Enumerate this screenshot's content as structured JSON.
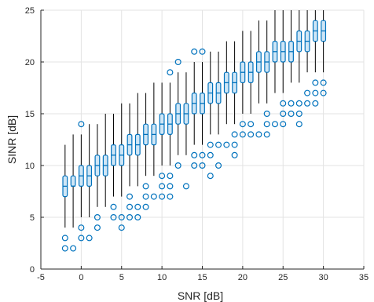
{
  "chart_data": {
    "type": "box",
    "xlabel": "SNR [dB]",
    "ylabel": "SINR [dB]",
    "xlim": [
      -5,
      35
    ],
    "ylim": [
      0,
      25
    ],
    "xticks": [
      -5,
      0,
      5,
      10,
      15,
      20,
      25,
      30,
      35
    ],
    "yticks": [
      0,
      5,
      10,
      15,
      20,
      25
    ],
    "grid": true,
    "colors": {
      "box": "#0072BD",
      "box_fill": "#CFE6F6",
      "median": "#0072BD",
      "whisker": "#000000",
      "outlier": "#0072BD",
      "grid": "#E3E3E3"
    },
    "boxes": [
      {
        "x": -2,
        "whisker_low": 4,
        "q1": 7,
        "median": 8,
        "q3": 9,
        "whisker_high": 12,
        "outliers": [
          2,
          3
        ]
      },
      {
        "x": -1,
        "whisker_low": 4,
        "q1": 8,
        "median": 8,
        "q3": 9,
        "whisker_high": 13,
        "outliers": [
          2
        ]
      },
      {
        "x": 0,
        "whisker_low": 5,
        "q1": 8,
        "median": 9,
        "q3": 10,
        "whisker_high": 13,
        "outliers": [
          3,
          4,
          14
        ]
      },
      {
        "x": 1,
        "whisker_low": 5,
        "q1": 8,
        "median": 9,
        "q3": 10,
        "whisker_high": 14,
        "outliers": [
          3
        ]
      },
      {
        "x": 2,
        "whisker_low": 6,
        "q1": 9,
        "median": 10,
        "q3": 11,
        "whisker_high": 14,
        "outliers": [
          4,
          5
        ]
      },
      {
        "x": 3,
        "whisker_low": 6,
        "q1": 9,
        "median": 10,
        "q3": 11,
        "whisker_high": 15,
        "outliers": []
      },
      {
        "x": 4,
        "whisker_low": 7,
        "q1": 10,
        "median": 11,
        "q3": 12,
        "whisker_high": 15,
        "outliers": [
          5,
          6
        ]
      },
      {
        "x": 5,
        "whisker_low": 7,
        "q1": 10,
        "median": 11,
        "q3": 12,
        "whisker_high": 16,
        "outliers": [
          4,
          5
        ]
      },
      {
        "x": 6,
        "whisker_low": 8,
        "q1": 11,
        "median": 12,
        "q3": 13,
        "whisker_high": 16,
        "outliers": [
          5,
          6,
          7
        ]
      },
      {
        "x": 7,
        "whisker_low": 8,
        "q1": 11,
        "median": 12,
        "q3": 13,
        "whisker_high": 17,
        "outliers": [
          5,
          6
        ]
      },
      {
        "x": 8,
        "whisker_low": 9,
        "q1": 12,
        "median": 13,
        "q3": 14,
        "whisker_high": 17,
        "outliers": [
          6,
          7,
          8
        ]
      },
      {
        "x": 9,
        "whisker_low": 9,
        "q1": 12,
        "median": 13,
        "q3": 14,
        "whisker_high": 18,
        "outliers": [
          7
        ]
      },
      {
        "x": 10,
        "whisker_low": 10,
        "q1": 13,
        "median": 14,
        "q3": 15,
        "whisker_high": 18,
        "outliers": [
          7,
          8,
          9
        ]
      },
      {
        "x": 11,
        "whisker_low": 10,
        "q1": 13,
        "median": 14,
        "q3": 15,
        "whisker_high": 18,
        "outliers": [
          7,
          8,
          9,
          19
        ]
      },
      {
        "x": 12,
        "whisker_low": 11,
        "q1": 14,
        "median": 15,
        "q3": 16,
        "whisker_high": 19,
        "outliers": [
          10,
          20
        ]
      },
      {
        "x": 13,
        "whisker_low": 11,
        "q1": 14,
        "median": 15,
        "q3": 16,
        "whisker_high": 19,
        "outliers": [
          8
        ]
      },
      {
        "x": 14,
        "whisker_low": 12,
        "q1": 15,
        "median": 16,
        "q3": 17,
        "whisker_high": 20,
        "outliers": [
          10,
          11,
          21
        ]
      },
      {
        "x": 15,
        "whisker_low": 12,
        "q1": 15,
        "median": 16,
        "q3": 17,
        "whisker_high": 20,
        "outliers": [
          10,
          11,
          21
        ]
      },
      {
        "x": 16,
        "whisker_low": 13,
        "q1": 16,
        "median": 17,
        "q3": 18,
        "whisker_high": 21,
        "outliers": [
          9,
          11,
          12
        ]
      },
      {
        "x": 17,
        "whisker_low": 13,
        "q1": 16,
        "median": 17,
        "q3": 18,
        "whisker_high": 21,
        "outliers": [
          10,
          12
        ]
      },
      {
        "x": 18,
        "whisker_low": 14,
        "q1": 17,
        "median": 18,
        "q3": 19,
        "whisker_high": 22,
        "outliers": [
          12
        ]
      },
      {
        "x": 19,
        "whisker_low": 14,
        "q1": 17,
        "median": 18,
        "q3": 19,
        "whisker_high": 22,
        "outliers": [
          11,
          12,
          13
        ]
      },
      {
        "x": 20,
        "whisker_low": 15,
        "q1": 18,
        "median": 19,
        "q3": 20,
        "whisker_high": 23,
        "outliers": [
          13,
          14
        ]
      },
      {
        "x": 21,
        "whisker_low": 15,
        "q1": 18,
        "median": 19,
        "q3": 20,
        "whisker_high": 23,
        "outliers": [
          13,
          14
        ]
      },
      {
        "x": 22,
        "whisker_low": 16,
        "q1": 19,
        "median": 20,
        "q3": 21,
        "whisker_high": 24,
        "outliers": [
          13
        ]
      },
      {
        "x": 23,
        "whisker_low": 16,
        "q1": 19,
        "median": 20,
        "q3": 21,
        "whisker_high": 24,
        "outliers": [
          13,
          14,
          15
        ]
      },
      {
        "x": 24,
        "whisker_low": 17,
        "q1": 20,
        "median": 21,
        "q3": 22,
        "whisker_high": 25,
        "outliers": [
          14
        ]
      },
      {
        "x": 25,
        "whisker_low": 17,
        "q1": 20,
        "median": 21,
        "q3": 22,
        "whisker_high": 25,
        "outliers": [
          14,
          15,
          16
        ]
      },
      {
        "x": 26,
        "whisker_low": 18,
        "q1": 20,
        "median": 21,
        "q3": 22,
        "whisker_high": 25,
        "outliers": [
          15,
          16
        ]
      },
      {
        "x": 27,
        "whisker_low": 18,
        "q1": 21,
        "median": 22,
        "q3": 23,
        "whisker_high": 25,
        "outliers": [
          14,
          15,
          16
        ]
      },
      {
        "x": 28,
        "whisker_low": 19,
        "q1": 21,
        "median": 22,
        "q3": 23,
        "whisker_high": 25,
        "outliers": [
          16,
          17
        ]
      },
      {
        "x": 29,
        "whisker_low": 19,
        "q1": 22,
        "median": 23,
        "q3": 24,
        "whisker_high": 25,
        "outliers": [
          16,
          17,
          18
        ]
      },
      {
        "x": 30,
        "whisker_low": 19,
        "q1": 22,
        "median": 23,
        "q3": 24,
        "whisker_high": 25,
        "outliers": [
          17,
          18
        ]
      }
    ]
  }
}
